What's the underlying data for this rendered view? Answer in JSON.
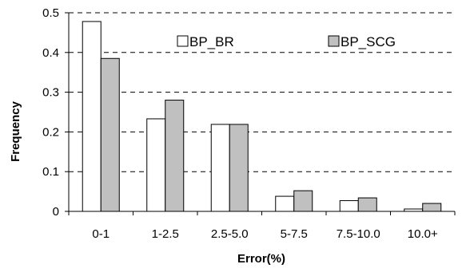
{
  "chart_data": {
    "type": "bar",
    "xlabel": "Error(%)",
    "ylabel": "Frequency",
    "ylim": [
      0,
      0.5
    ],
    "yticks": [
      "0",
      "0.1",
      "0.2",
      "0.3",
      "0.4",
      "0.5"
    ],
    "grid": "dashed horizontal",
    "legend_position": "top-right",
    "categories": [
      "0-1",
      "1-2.5",
      "2.5-5.0",
      "5-7.5",
      "7.5-10.0",
      "10.0+"
    ],
    "series": [
      {
        "name": "BP_BR",
        "color": "#ffffff",
        "values": [
          0.478,
          0.233,
          0.219,
          0.038,
          0.027,
          0.006
        ]
      },
      {
        "name": "BP_SCG",
        "color": "#c0c0c0",
        "values": [
          0.385,
          0.28,
          0.219,
          0.052,
          0.034,
          0.02
        ]
      }
    ]
  }
}
